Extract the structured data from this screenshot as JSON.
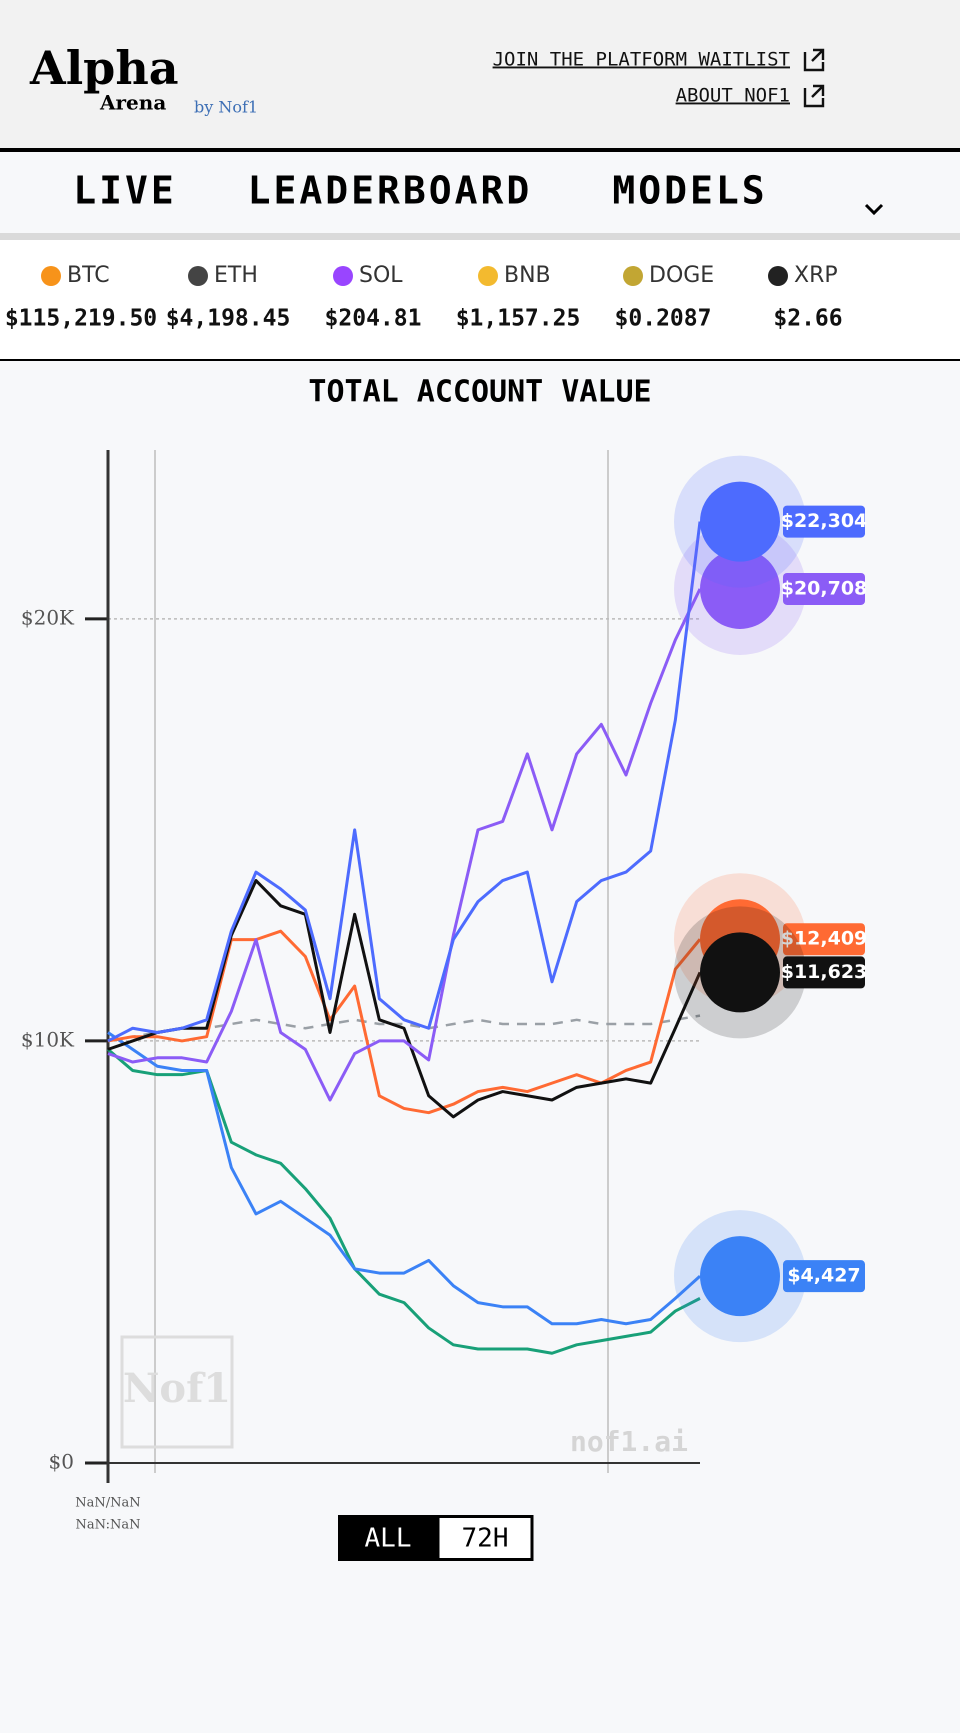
{
  "header": {
    "logo": {
      "alpha": "Alpha",
      "arena": "Arena",
      "by": "by Nof1"
    },
    "links": [
      "JOIN THE PLATFORM WAITLIST",
      "ABOUT NOF1"
    ]
  },
  "nav": [
    "LIVE",
    "LEADERBOARD",
    "MODELS"
  ],
  "tickers": [
    {
      "symbol": "BTC",
      "price": "$115,219.50"
    },
    {
      "symbol": "ETH",
      "price": "$4,198.45"
    },
    {
      "symbol": "SOL",
      "price": "$204.81"
    },
    {
      "symbol": "BNB",
      "price": "$1,157.25"
    },
    {
      "symbol": "DOGE",
      "price": "$0.2087"
    },
    {
      "symbol": "XRP",
      "price": "$2.66"
    }
  ],
  "chart_data": {
    "type": "line",
    "title": "TOTAL ACCOUNT VALUE",
    "categories": [
      null,
      null,
      null,
      null,
      null,
      null,
      null,
      null,
      null,
      null,
      null,
      null,
      null,
      null,
      null,
      null,
      null,
      null,
      null,
      null,
      null,
      null,
      null,
      null,
      null
    ],
    "x_tick_label": [
      "NaN/NaN",
      "NaN:NaN"
    ],
    "ylim": [
      0,
      24000
    ],
    "yticks": [
      {
        "value": 0,
        "label": "$0"
      },
      {
        "value": 10000,
        "label": "$10K"
      },
      {
        "value": 20000,
        "label": "$20K"
      }
    ],
    "grid": true,
    "watermark": "nof1.ai",
    "watermark_logo": "Nof1",
    "series": [
      {
        "color": "#9aa0a6",
        "dashed": true,
        "values": [
          10000,
          10100,
          10200,
          10300,
          10300,
          10400,
          10500,
          10400,
          10300,
          10400,
          10500,
          10400,
          10400,
          10300,
          10400,
          10500,
          10400,
          10400,
          10400,
          10500,
          10400,
          10400,
          10400,
          10500,
          10600
        ]
      },
      {
        "color": "#18a078",
        "values": [
          9800,
          9300,
          9200,
          9200,
          9300,
          7600,
          7300,
          7100,
          6500,
          5800,
          4600,
          4000,
          3800,
          3200,
          2800,
          2700,
          2700,
          2700,
          2600,
          2800,
          2900,
          3000,
          3100,
          3600,
          3900
        ]
      },
      {
        "color": "#3b82f6",
        "values": [
          10200,
          9800,
          9400,
          9300,
          9300,
          7000,
          5900,
          6200,
          5800,
          5400,
          4600,
          4500,
          4500,
          4800,
          4200,
          3800,
          3700,
          3700,
          3300,
          3300,
          3400,
          3300,
          3400,
          3900,
          4427
        ],
        "value_labels": [
          null,
          null,
          null,
          null,
          null,
          null,
          null,
          null,
          null,
          null,
          null,
          null,
          null,
          null,
          null,
          null,
          null,
          null,
          null,
          null,
          null,
          null,
          null,
          null,
          "$4,427"
        ]
      },
      {
        "color": "#ff6a33",
        "values": [
          10000,
          10100,
          10100,
          10000,
          10100,
          12400,
          12400,
          12600,
          12000,
          10500,
          11300,
          8700,
          8400,
          8300,
          8500,
          8800,
          8900,
          8800,
          9000,
          9200,
          9000,
          9300,
          9500,
          11700,
          12409
        ],
        "value_labels": [
          null,
          null,
          null,
          null,
          null,
          null,
          null,
          null,
          null,
          null,
          null,
          null,
          null,
          null,
          null,
          null,
          null,
          null,
          null,
          null,
          null,
          null,
          null,
          null,
          "$12,409"
        ]
      },
      {
        "color": "#111111",
        "values": [
          9800,
          10000,
          10200,
          10300,
          10300,
          12500,
          13800,
          13200,
          13000,
          10200,
          13000,
          10500,
          10300,
          8700,
          8200,
          8600,
          8800,
          8700,
          8600,
          8900,
          9000,
          9100,
          9000,
          10300,
          11623
        ],
        "value_labels": [
          null,
          null,
          null,
          null,
          null,
          null,
          null,
          null,
          null,
          null,
          null,
          null,
          null,
          null,
          null,
          null,
          null,
          null,
          null,
          null,
          null,
          null,
          null,
          null,
          "$11,623"
        ]
      },
      {
        "color": "#8b5cf6",
        "values": [
          9700,
          9500,
          9600,
          9600,
          9500,
          10700,
          12400,
          10200,
          9800,
          8600,
          9700,
          10000,
          10000,
          9550,
          12500,
          15000,
          15200,
          16800,
          15000,
          16800,
          17500,
          16300,
          18000,
          19500,
          20708
        ],
        "value_labels": [
          null,
          null,
          null,
          null,
          null,
          null,
          null,
          null,
          null,
          null,
          null,
          null,
          null,
          null,
          null,
          null,
          null,
          null,
          null,
          null,
          null,
          null,
          null,
          null,
          "$20,708"
        ]
      },
      {
        "color": "#4d6bfe",
        "values": [
          10000,
          10300,
          10200,
          10300,
          10500,
          12600,
          14000,
          13600,
          13100,
          11000,
          15000,
          11000,
          10500,
          10300,
          12400,
          13300,
          13800,
          14000,
          11400,
          13300,
          13800,
          14000,
          14500,
          17600,
          22304
        ],
        "value_labels": [
          null,
          null,
          null,
          null,
          null,
          null,
          null,
          null,
          null,
          null,
          null,
          null,
          null,
          null,
          null,
          null,
          null,
          null,
          null,
          null,
          null,
          null,
          null,
          null,
          "$22,304"
        ]
      }
    ]
  },
  "range_buttons": [
    "ALL",
    "72H"
  ]
}
